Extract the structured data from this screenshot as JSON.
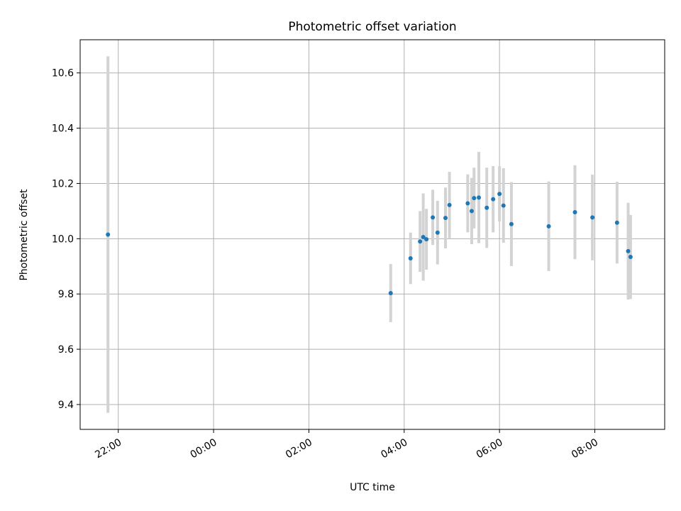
{
  "chart_data": {
    "type": "scatter",
    "title": "Photometric offset variation",
    "xlabel": "UTC time",
    "ylabel": "Photometric offset",
    "x_axis": {
      "type": "time",
      "range_start": "21:12",
      "range_end": "09:28",
      "ticks": [
        {
          "time": "22:00",
          "label": "22:00"
        },
        {
          "time": "00:00",
          "label": "00:00"
        },
        {
          "time": "02:00",
          "label": "02:00"
        },
        {
          "time": "04:00",
          "label": "04:00"
        },
        {
          "time": "06:00",
          "label": "06:00"
        },
        {
          "time": "08:00",
          "label": "08:00"
        }
      ]
    },
    "y_axis": {
      "range": [
        9.31,
        10.72
      ],
      "ticks": [
        {
          "value": 9.4,
          "label": "9.4"
        },
        {
          "value": 9.6,
          "label": "9.6"
        },
        {
          "value": 9.8,
          "label": "9.8"
        },
        {
          "value": 10.0,
          "label": "10.0"
        },
        {
          "value": 10.2,
          "label": "10.2"
        },
        {
          "value": 10.4,
          "label": "10.4"
        },
        {
          "value": 10.6,
          "label": "10.6"
        }
      ]
    },
    "grid": true,
    "colors": {
      "point": "#1f77b4",
      "errorbar": "#d3d3d3",
      "grid": "#b0b0b0"
    },
    "points": [
      {
        "time": "21:47",
        "y": 10.015,
        "yerr": 0.645
      },
      {
        "time": "03:43",
        "y": 9.803,
        "yerr": 0.105
      },
      {
        "time": "04:08",
        "y": 9.929,
        "yerr": 0.093
      },
      {
        "time": "04:20",
        "y": 9.99,
        "yerr": 0.11
      },
      {
        "time": "04:24",
        "y": 10.006,
        "yerr": 0.158
      },
      {
        "time": "04:28",
        "y": 9.998,
        "yerr": 0.11
      },
      {
        "time": "04:36",
        "y": 10.077,
        "yerr": 0.1
      },
      {
        "time": "04:42",
        "y": 10.022,
        "yerr": 0.115
      },
      {
        "time": "04:52",
        "y": 10.075,
        "yerr": 0.11
      },
      {
        "time": "04:57",
        "y": 10.122,
        "yerr": 0.12
      },
      {
        "time": "05:20",
        "y": 10.128,
        "yerr": 0.105
      },
      {
        "time": "05:25",
        "y": 10.1,
        "yerr": 0.12
      },
      {
        "time": "05:28",
        "y": 10.147,
        "yerr": 0.11
      },
      {
        "time": "05:34",
        "y": 10.149,
        "yerr": 0.165
      },
      {
        "time": "05:44",
        "y": 10.112,
        "yerr": 0.145
      },
      {
        "time": "05:52",
        "y": 10.143,
        "yerr": 0.12
      },
      {
        "time": "06:00",
        "y": 10.162,
        "yerr": 0.1
      },
      {
        "time": "06:05",
        "y": 10.12,
        "yerr": 0.135
      },
      {
        "time": "06:15",
        "y": 10.053,
        "yerr": 0.152
      },
      {
        "time": "07:02",
        "y": 10.045,
        "yerr": 0.162
      },
      {
        "time": "07:35",
        "y": 10.096,
        "yerr": 0.17
      },
      {
        "time": "07:57",
        "y": 10.077,
        "yerr": 0.155
      },
      {
        "time": "08:28",
        "y": 10.058,
        "yerr": 0.148
      },
      {
        "time": "08:42",
        "y": 9.955,
        "yerr": 0.175
      },
      {
        "time": "08:45",
        "y": 9.934,
        "yerr": 0.152
      }
    ]
  }
}
